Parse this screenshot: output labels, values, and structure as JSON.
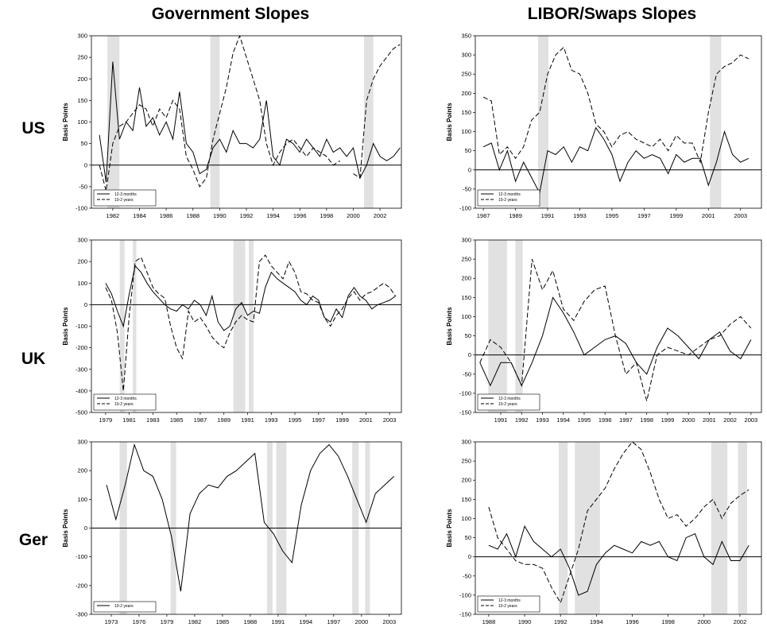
{
  "column_titles": [
    "Government Slopes",
    "LIBOR/Swaps Slopes"
  ],
  "row_labels": [
    "US",
    "UK",
    "Ger"
  ],
  "chart_data": [
    {
      "type": "line",
      "ylabel": "Basis Points",
      "legend": "lower left",
      "zero_line": true,
      "xlim": [
        1980.4,
        2003.6
      ],
      "xticks": [
        1982,
        1984,
        1986,
        1988,
        1990,
        1992,
        1994,
        1996,
        1998,
        2000,
        2002
      ],
      "ylim": [
        -100,
        300
      ],
      "yticks": [
        -100,
        -50,
        0,
        50,
        100,
        150,
        200,
        250,
        300
      ],
      "shade_color": "#e1e1e1",
      "shaded_periods": [
        [
          1981.6,
          1982.5
        ],
        [
          1989.3,
          1990.0
        ],
        [
          2000.8,
          2001.5
        ]
      ],
      "x": [
        1981,
        1981.5,
        1982,
        1982.5,
        1983,
        1983.5,
        1984,
        1984.5,
        1985,
        1985.5,
        1986,
        1986.5,
        1987,
        1987.5,
        1988,
        1988.5,
        1989,
        1989.5,
        1990,
        1990.5,
        1991,
        1991.5,
        1992,
        1992.5,
        1993,
        1993.5,
        1994,
        1994.5,
        1995,
        1995.5,
        1996,
        1996.5,
        1997,
        1997.5,
        1998,
        1998.5,
        1999,
        1999.5,
        2000,
        2000.5,
        2001,
        2001.5,
        2002,
        2002.5,
        2003,
        2003.5
      ],
      "series": [
        {
          "name": "12-3 months",
          "color": "#000000",
          "line_style": "solid",
          "values": [
            70,
            -40,
            240,
            60,
            100,
            80,
            180,
            90,
            110,
            70,
            100,
            60,
            170,
            50,
            30,
            -20,
            -10,
            40,
            60,
            30,
            80,
            50,
            50,
            40,
            60,
            150,
            20,
            0,
            60,
            50,
            30,
            60,
            40,
            20,
            60,
            30,
            40,
            20,
            40,
            -30,
            0,
            50,
            20,
            10,
            20,
            40
          ]
        },
        {
          "name": "10-2 years",
          "color": "#000000",
          "line_style": "dashed",
          "values": [
            0,
            -60,
            50,
            90,
            100,
            120,
            140,
            130,
            90,
            130,
            110,
            150,
            130,
            20,
            -10,
            -50,
            -30,
            60,
            120,
            180,
            260,
            300,
            250,
            200,
            150,
            50,
            0,
            30,
            50,
            60,
            40,
            20,
            40,
            30,
            20,
            0,
            10,
            null,
            -20,
            -30,
            150,
            200,
            230,
            250,
            270,
            280
          ]
        }
      ]
    },
    {
      "type": "line",
      "ylabel": "Basis Points",
      "legend": "lower left",
      "zero_line": true,
      "xlim": [
        1986.5,
        2004.3
      ],
      "xticks": [
        1987,
        1989,
        1991,
        1993,
        1995,
        1997,
        1999,
        2001,
        2003
      ],
      "ylim": [
        -100,
        350
      ],
      "yticks": [
        -100,
        -50,
        0,
        50,
        100,
        150,
        200,
        250,
        300,
        350
      ],
      "shade_color": "#e1e1e1",
      "shaded_periods": [
        [
          1990.4,
          1991.05
        ],
        [
          2001.1,
          2001.8
        ]
      ],
      "x": [
        1987,
        1987.5,
        1988,
        1988.5,
        1989,
        1989.5,
        1990,
        1990.5,
        1991,
        1991.5,
        1992,
        1992.5,
        1993,
        1993.5,
        1994,
        1994.5,
        1995,
        1995.5,
        1996,
        1996.5,
        1997,
        1997.5,
        1998,
        1998.5,
        1999,
        1999.5,
        2000,
        2000.5,
        2001,
        2001.5,
        2002,
        2002.5,
        2003,
        2003.5
      ],
      "series": [
        {
          "name": "12-3 months",
          "color": "#000000",
          "line_style": "solid",
          "values": [
            60,
            70,
            0,
            50,
            -30,
            20,
            -20,
            -60,
            50,
            40,
            60,
            20,
            60,
            50,
            110,
            80,
            40,
            -30,
            20,
            50,
            30,
            40,
            30,
            -10,
            40,
            20,
            30,
            30,
            -40,
            20,
            100,
            40,
            20,
            30
          ]
        },
        {
          "name": "10-2 years",
          "color": "#000000",
          "line_style": "dashed",
          "values": [
            190,
            180,
            40,
            60,
            30,
            60,
            130,
            150,
            250,
            300,
            320,
            260,
            250,
            200,
            120,
            100,
            60,
            90,
            100,
            80,
            70,
            60,
            80,
            50,
            90,
            70,
            70,
            20,
            150,
            250,
            270,
            280,
            300,
            290
          ]
        }
      ]
    },
    {
      "type": "line",
      "ylabel": "Basis Points",
      "legend": "lower left",
      "zero_line": true,
      "xlim": [
        1977.8,
        2004.0
      ],
      "xticks": [
        1979,
        1981,
        1983,
        1985,
        1987,
        1989,
        1991,
        1993,
        1995,
        1997,
        1999,
        2001,
        2003
      ],
      "ylim": [
        -500,
        300
      ],
      "yticks": [
        -500,
        -400,
        -300,
        -200,
        -100,
        0,
        100,
        200,
        300
      ],
      "shade_color": "#e1e1e1",
      "shaded_periods": [
        [
          1980.2,
          1980.6
        ],
        [
          1981.3,
          1981.6
        ],
        [
          1989.8,
          1990.8
        ],
        [
          1991.1,
          1991.5
        ]
      ],
      "x": [
        1979,
        1979.5,
        1980,
        1980.5,
        1981,
        1981.5,
        1982,
        1982.5,
        1983,
        1983.5,
        1984,
        1984.5,
        1985,
        1985.5,
        1986,
        1986.5,
        1987,
        1987.5,
        1988,
        1988.5,
        1989,
        1989.5,
        1990,
        1990.5,
        1991,
        1991.5,
        1992,
        1992.5,
        1993,
        1993.5,
        1994,
        1994.5,
        1995,
        1995.5,
        1996,
        1996.5,
        1997,
        1997.5,
        1998,
        1998.5,
        1999,
        1999.5,
        2000,
        2000.5,
        2001,
        2001.5,
        2002,
        2002.5,
        2003,
        2003.5
      ],
      "series": [
        {
          "name": "12-3 months",
          "color": "#000000",
          "line_style": "solid",
          "values": [
            100,
            50,
            -30,
            -100,
            50,
            180,
            150,
            100,
            60,
            30,
            0,
            -20,
            -30,
            0,
            -20,
            20,
            0,
            -50,
            40,
            -80,
            -120,
            -100,
            -20,
            10,
            -50,
            -30,
            -40,
            80,
            150,
            120,
            100,
            80,
            60,
            20,
            0,
            40,
            20,
            -60,
            -80,
            -20,
            -60,
            40,
            80,
            40,
            20,
            -20,
            0,
            10,
            20,
            40
          ]
        },
        {
          "name": "10-2 years",
          "color": "#000000",
          "line_style": "dashed",
          "values": [
            80,
            20,
            -130,
            -400,
            -50,
            200,
            220,
            150,
            80,
            50,
            30,
            -100,
            -200,
            -250,
            -30,
            -80,
            -60,
            -100,
            -150,
            -180,
            -200,
            -130,
            -80,
            -50,
            -70,
            -80,
            200,
            230,
            180,
            150,
            120,
            200,
            150,
            60,
            50,
            20,
            10,
            -60,
            -100,
            -50,
            -20,
            30,
            60,
            20,
            50,
            60,
            80,
            100,
            80,
            40
          ]
        }
      ]
    },
    {
      "type": "line",
      "ylabel": "Basis Points",
      "legend": "lower left",
      "zero_line": true,
      "xlim": [
        1989.78,
        2003.5
      ],
      "xticks": [
        1991,
        1992,
        1993,
        1994,
        1995,
        1996,
        1997,
        1998,
        1999,
        2000,
        2001,
        2002,
        2003
      ],
      "ylim": [
        -150,
        300
      ],
      "yticks": [
        -150,
        -100,
        -50,
        0,
        50,
        100,
        150,
        200,
        250,
        300
      ],
      "shade_color": "#e1e1e1",
      "shaded_periods": [
        [
          1990.4,
          1991.3
        ],
        [
          1991.7,
          1992.05
        ]
      ],
      "x": [
        1990,
        1990.5,
        1991,
        1991.5,
        1992,
        1992.5,
        1993,
        1993.5,
        1994,
        1994.5,
        1995,
        1995.5,
        1996,
        1996.5,
        1997,
        1997.5,
        1998,
        1998.5,
        1999,
        1999.5,
        2000,
        2000.5,
        2001,
        2001.5,
        2002,
        2002.5,
        2003
      ],
      "series": [
        {
          "name": "12-3 months",
          "color": "#000000",
          "line_style": "solid",
          "values": [
            -20,
            -80,
            -20,
            -20,
            -80,
            -20,
            50,
            150,
            110,
            60,
            0,
            20,
            40,
            50,
            30,
            -20,
            -50,
            20,
            70,
            50,
            20,
            -10,
            40,
            60,
            10,
            -10,
            40
          ]
        },
        {
          "name": "10-2 years",
          "color": "#000000",
          "line_style": "dashed",
          "values": [
            -20,
            40,
            20,
            -20,
            -80,
            250,
            170,
            220,
            120,
            90,
            140,
            170,
            180,
            50,
            -50,
            -20,
            -120,
            0,
            20,
            10,
            0,
            20,
            40,
            50,
            80,
            100,
            70
          ]
        }
      ]
    },
    {
      "type": "line",
      "ylabel": "Basis Points",
      "legend": "lower left",
      "zero_line": true,
      "xlim": [
        1970.86,
        2004.3
      ],
      "xticks": [
        1973,
        1976,
        1979,
        1982,
        1985,
        1988,
        1991,
        1994,
        1997,
        2000,
        2003
      ],
      "ylim": [
        -300,
        300
      ],
      "yticks": [
        -300,
        -200,
        -100,
        0,
        100,
        200,
        300
      ],
      "shade_color": "#e1e1e1",
      "shaded_periods": [
        [
          1973.9,
          1974.7
        ],
        [
          1979.4,
          1980.0
        ],
        [
          1989.8,
          1990.4
        ],
        [
          1990.8,
          1991.9
        ],
        [
          1999.0,
          1999.7
        ],
        [
          2000.4,
          2000.9
        ]
      ],
      "x": [
        1972.5,
        1973.5,
        1974.5,
        1975.5,
        1976.5,
        1977.5,
        1978.5,
        1979.5,
        1980.5,
        1981.5,
        1982.5,
        1983.5,
        1984.5,
        1985.5,
        1986.5,
        1987.5,
        1988.5,
        1989.5,
        1990.5,
        1991.5,
        1992.5,
        1993.5,
        1994.5,
        1995.5,
        1996.5,
        1997.5,
        1998.5,
        1999.5,
        2000.5,
        2001.5,
        2002.5,
        2003.5
      ],
      "series": [
        {
          "name": "10-2 years",
          "color": "#000000",
          "line_style": "solid",
          "values": [
            150,
            30,
            150,
            290,
            200,
            180,
            100,
            -30,
            -220,
            50,
            120,
            150,
            140,
            180,
            200,
            230,
            260,
            20,
            -20,
            -80,
            -120,
            80,
            200,
            260,
            290,
            250,
            180,
            100,
            20,
            120,
            150,
            180
          ]
        }
      ]
    },
    {
      "type": "line",
      "ylabel": "Basis Points",
      "legend": "lower left",
      "zero_line": true,
      "xlim": [
        1987.25,
        2003.2
      ],
      "xticks": [
        1988,
        1990,
        1992,
        1994,
        1996,
        1998,
        2000,
        2002
      ],
      "ylim": [
        -150,
        300
      ],
      "yticks": [
        -150,
        -100,
        -50,
        0,
        50,
        100,
        150,
        200,
        250,
        300
      ],
      "shade_color": "#e1e1e1",
      "shaded_periods": [
        [
          1991.9,
          1992.4
        ],
        [
          1992.8,
          1994.2
        ],
        [
          2000.4,
          2001.3
        ],
        [
          2001.9,
          2002.4
        ]
      ],
      "x": [
        1988,
        1988.5,
        1989,
        1989.5,
        1990,
        1990.5,
        1991,
        1991.5,
        1992,
        1992.5,
        1993,
        1993.5,
        1994,
        1994.5,
        1995,
        1995.5,
        1996,
        1996.5,
        1997,
        1997.5,
        1998,
        1998.5,
        1999,
        1999.5,
        2000,
        2000.5,
        2001,
        2001.5,
        2002,
        2002.5
      ],
      "series": [
        {
          "name": "12-3 months",
          "color": "#000000",
          "line_style": "solid",
          "values": [
            30,
            20,
            60,
            0,
            80,
            40,
            20,
            0,
            20,
            -30,
            -100,
            -90,
            -20,
            10,
            30,
            20,
            10,
            40,
            30,
            40,
            0,
            -10,
            50,
            60,
            0,
            -20,
            40,
            -10,
            -10,
            30
          ]
        },
        {
          "name": "10-2 years",
          "color": "#000000",
          "line_style": "dashed",
          "values": [
            130,
            50,
            20,
            -10,
            -20,
            -20,
            -30,
            -80,
            -120,
            -50,
            20,
            120,
            150,
            180,
            230,
            270,
            300,
            280,
            220,
            150,
            100,
            110,
            80,
            100,
            130,
            150,
            100,
            140,
            160,
            175
          ]
        }
      ]
    }
  ]
}
